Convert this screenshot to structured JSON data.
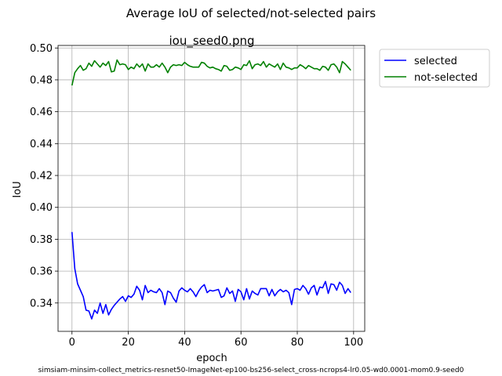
{
  "figure": {
    "suptitle": "Average IoU of selected/not-selected pairs",
    "footer": "simsiam-minsim-collect_metrics-resnet50-ImageNet-ep100-bs256-select_cross-ncrops4-lr0.05-wd0.0001-mom0.9-seed0"
  },
  "chart_data": {
    "type": "line",
    "title": "iou_seed0.png",
    "xlabel": "epoch",
    "ylabel": "IoU",
    "xlim": [
      -4.95,
      103.95
    ],
    "ylim": [
      0.3222,
      0.5016
    ],
    "xticks": [
      0,
      20,
      40,
      60,
      80,
      100
    ],
    "yticks": [
      0.34,
      0.36,
      0.38,
      0.4,
      0.42,
      0.44,
      0.46,
      0.48,
      0.5
    ],
    "ytick_labels": [
      "0.34",
      "0.36",
      "0.38",
      "0.40",
      "0.42",
      "0.44",
      "0.46",
      "0.48",
      "0.50"
    ],
    "grid": true,
    "legend_position": "outside-upper-right",
    "series": [
      {
        "name": "selected",
        "color": "#0000ff",
        "x": [
          0,
          1,
          2,
          3,
          4,
          5,
          6,
          7,
          8,
          9,
          10,
          11,
          12,
          13,
          14,
          15,
          16,
          17,
          18,
          19,
          20,
          21,
          22,
          23,
          24,
          25,
          26,
          27,
          28,
          29,
          30,
          31,
          32,
          33,
          34,
          35,
          36,
          37,
          38,
          39,
          40,
          41,
          42,
          43,
          44,
          45,
          46,
          47,
          48,
          49,
          50,
          51,
          52,
          53,
          54,
          55,
          56,
          57,
          58,
          59,
          60,
          61,
          62,
          63,
          64,
          65,
          66,
          67,
          68,
          69,
          70,
          71,
          72,
          73,
          74,
          75,
          76,
          77,
          78,
          79,
          80,
          81,
          82,
          83,
          84,
          85,
          86,
          87,
          88,
          89,
          90,
          91,
          92,
          93,
          94,
          95,
          96,
          97,
          98,
          99
        ],
        "y": [
          0.3845,
          0.3615,
          0.352,
          0.348,
          0.344,
          0.3355,
          0.335,
          0.33,
          0.3355,
          0.3335,
          0.34,
          0.3335,
          0.339,
          0.3325,
          0.336,
          0.3385,
          0.3405,
          0.3425,
          0.344,
          0.341,
          0.3445,
          0.3435,
          0.3455,
          0.3505,
          0.348,
          0.342,
          0.351,
          0.3465,
          0.348,
          0.347,
          0.3465,
          0.349,
          0.3465,
          0.339,
          0.3475,
          0.3465,
          0.343,
          0.3405,
          0.3475,
          0.3495,
          0.348,
          0.347,
          0.349,
          0.347,
          0.344,
          0.3475,
          0.35,
          0.3515,
          0.3465,
          0.348,
          0.3475,
          0.348,
          0.3485,
          0.3435,
          0.3445,
          0.3495,
          0.346,
          0.3475,
          0.341,
          0.3485,
          0.347,
          0.342,
          0.349,
          0.3425,
          0.3475,
          0.346,
          0.345,
          0.349,
          0.349,
          0.349,
          0.3445,
          0.3485,
          0.3445,
          0.347,
          0.3485,
          0.347,
          0.348,
          0.3465,
          0.339,
          0.3485,
          0.349,
          0.348,
          0.351,
          0.349,
          0.3455,
          0.3495,
          0.351,
          0.345,
          0.35,
          0.3495,
          0.3535,
          0.346,
          0.352,
          0.3515,
          0.348,
          0.353,
          0.351,
          0.346,
          0.349,
          0.3465
        ]
      },
      {
        "name": "not-selected",
        "color": "#008000",
        "x": [
          0,
          1,
          2,
          3,
          4,
          5,
          6,
          7,
          8,
          9,
          10,
          11,
          12,
          13,
          14,
          15,
          16,
          17,
          18,
          19,
          20,
          21,
          22,
          23,
          24,
          25,
          26,
          27,
          28,
          29,
          30,
          31,
          32,
          33,
          34,
          35,
          36,
          37,
          38,
          39,
          40,
          41,
          42,
          43,
          44,
          45,
          46,
          47,
          48,
          49,
          50,
          51,
          52,
          53,
          54,
          55,
          56,
          57,
          58,
          59,
          60,
          61,
          62,
          63,
          64,
          65,
          66,
          67,
          68,
          69,
          70,
          71,
          72,
          73,
          74,
          75,
          76,
          77,
          78,
          79,
          80,
          81,
          82,
          83,
          84,
          85,
          86,
          87,
          88,
          89,
          90,
          91,
          92,
          93,
          94,
          95,
          96,
          97,
          98,
          99
        ],
        "y": [
          0.4765,
          0.4845,
          0.487,
          0.489,
          0.486,
          0.487,
          0.4905,
          0.4885,
          0.492,
          0.49,
          0.488,
          0.4905,
          0.489,
          0.4915,
          0.485,
          0.4855,
          0.4925,
          0.4895,
          0.49,
          0.4895,
          0.4865,
          0.488,
          0.487,
          0.49,
          0.488,
          0.49,
          0.4855,
          0.49,
          0.488,
          0.488,
          0.4895,
          0.488,
          0.4905,
          0.488,
          0.4845,
          0.488,
          0.4895,
          0.489,
          0.4895,
          0.489,
          0.491,
          0.4895,
          0.4885,
          0.488,
          0.488,
          0.488,
          0.491,
          0.4905,
          0.4885,
          0.4875,
          0.488,
          0.487,
          0.4865,
          0.4855,
          0.489,
          0.4885,
          0.486,
          0.4865,
          0.488,
          0.4875,
          0.4865,
          0.4895,
          0.489,
          0.492,
          0.487,
          0.4895,
          0.49,
          0.489,
          0.4915,
          0.488,
          0.49,
          0.489,
          0.488,
          0.49,
          0.4865,
          0.4905,
          0.488,
          0.4875,
          0.4865,
          0.4875,
          0.4875,
          0.4895,
          0.4885,
          0.487,
          0.489,
          0.488,
          0.487,
          0.487,
          0.486,
          0.4885,
          0.488,
          0.486,
          0.4895,
          0.49,
          0.488,
          0.4845,
          0.4915,
          0.49,
          0.488,
          0.486
        ]
      }
    ]
  }
}
